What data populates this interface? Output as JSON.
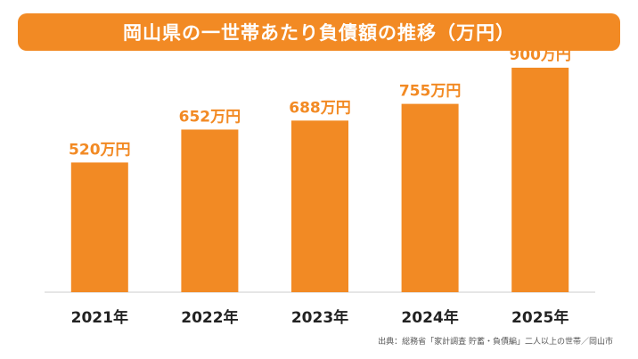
{
  "colors": {
    "accent": "#f28a24",
    "baseline": "#cccccc",
    "category_text": "#222222"
  },
  "chart_data": {
    "type": "bar",
    "title": "岡山県の一世帯あたり負債額の推移（万円）",
    "categories": [
      "2021年",
      "2022年",
      "2023年",
      "2024年",
      "2025年"
    ],
    "values": [
      520,
      652,
      688,
      755,
      900
    ],
    "data_labels": [
      "520万円",
      "652万円",
      "688万円",
      "755万円",
      "900万円"
    ],
    "ylim": [
      0,
      1000
    ],
    "grid": false,
    "legend": "none",
    "source": "出典：総務省「家計調査 貯蓄・負債編」二人以上の世帯／岡山市"
  }
}
